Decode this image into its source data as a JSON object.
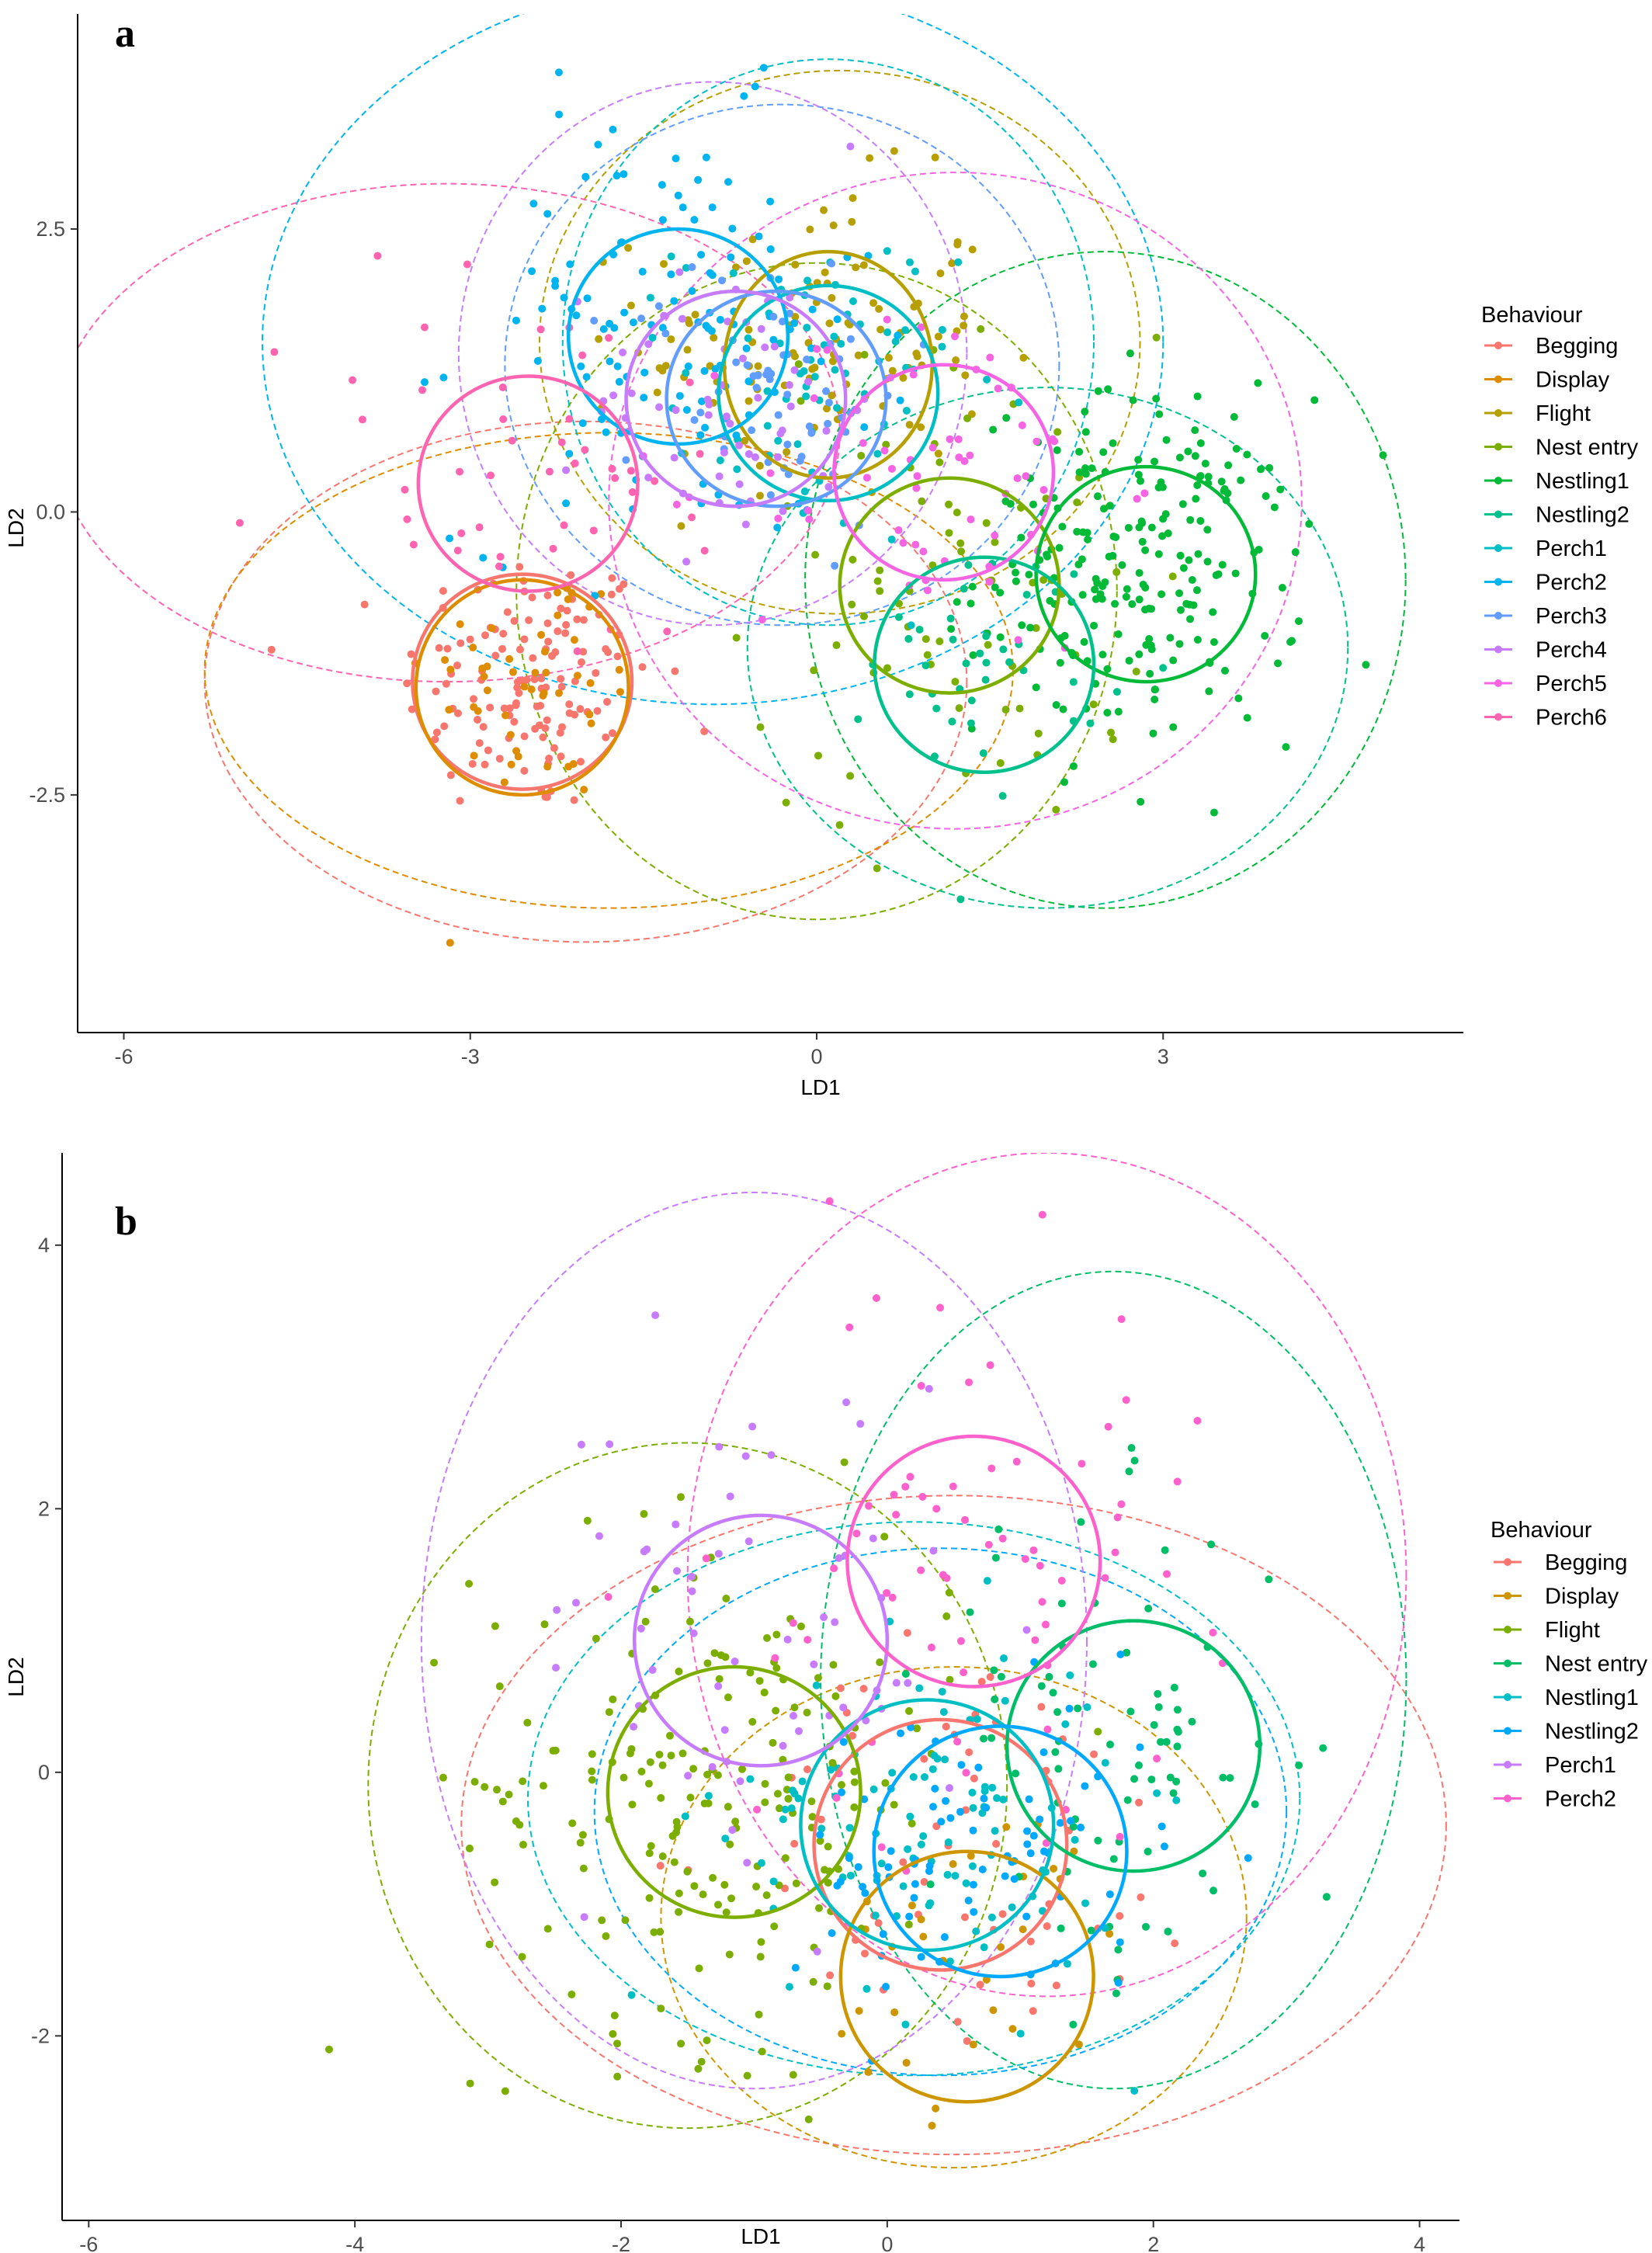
{
  "chart_data": [
    {
      "type": "scatter",
      "panel_label": "a",
      "xlabel": "LD1",
      "ylabel": "LD2",
      "xlim": [
        -6.4,
        5.6
      ],
      "ylim": [
        -4.6,
        4.4
      ],
      "xticks": [
        -6,
        -3,
        0,
        3
      ],
      "xtick_labels": [
        "-6",
        "-3",
        "0",
        "3"
      ],
      "yticks": [
        -2.5,
        0,
        2.5
      ],
      "ytick_labels": [
        "-2.5",
        "0.0",
        "2.5"
      ],
      "grid": false,
      "legend": {
        "title": "Behaviour",
        "placement": "right",
        "entries": [
          "Begging",
          "Display",
          "Flight",
          "Nest entry",
          "Nestling1",
          "Nestling2",
          "Perch1",
          "Perch2",
          "Perch3",
          "Perch4",
          "Perch5",
          "Perch6"
        ]
      },
      "series": [
        {
          "name": "Begging",
          "color": "#F8766D",
          "center": [
            -2.5,
            -1.5
          ],
          "spread": [
            0.55,
            0.6
          ],
          "n": 130,
          "ellipse_solid": [
            -2.55,
            -1.5,
            0.95,
            0.95
          ],
          "ellipse_dashed": [
            -2.0,
            -1.5,
            3.3,
            2.3
          ]
        },
        {
          "name": "Display",
          "color": "#DE8C00",
          "center": [
            -2.4,
            -1.5
          ],
          "spread": [
            0.5,
            0.55
          ],
          "n": 50,
          "ellipse_solid": [
            -2.55,
            -1.55,
            0.92,
            0.95
          ],
          "ellipse_dashed": [
            -1.8,
            -1.4,
            3.5,
            2.1
          ]
        },
        {
          "name": "Flight",
          "color": "#B79F00",
          "center": [
            0.0,
            1.5
          ],
          "spread": [
            0.75,
            0.7
          ],
          "n": 110,
          "ellipse_solid": [
            0.1,
            1.3,
            0.9,
            1.0
          ],
          "ellipse_dashed": [
            0.2,
            1.5,
            2.6,
            2.4
          ]
        },
        {
          "name": "Nest entry",
          "color": "#7CAE00",
          "center": [
            1.2,
            -0.6
          ],
          "spread": [
            0.9,
            1.1
          ],
          "n": 80,
          "ellipse_solid": [
            1.15,
            -0.65,
            0.95,
            0.95
          ],
          "ellipse_dashed": [
            0.0,
            -0.7,
            2.6,
            2.9
          ]
        },
        {
          "name": "Nestling1",
          "color": "#00BA38",
          "center": [
            2.8,
            -0.5
          ],
          "spread": [
            0.7,
            0.75
          ],
          "n": 220,
          "ellipse_solid": [
            2.85,
            -0.55,
            0.95,
            0.95
          ],
          "ellipse_dashed": [
            2.5,
            -0.6,
            2.6,
            2.9
          ]
        },
        {
          "name": "Nestling2",
          "color": "#00C08B",
          "center": [
            1.5,
            -1.3
          ],
          "spread": [
            0.5,
            0.55
          ],
          "n": 40,
          "ellipse_solid": [
            1.45,
            -1.35,
            0.95,
            0.95
          ],
          "ellipse_dashed": [
            2.0,
            -1.2,
            2.6,
            2.3
          ]
        },
        {
          "name": "Perch1",
          "color": "#00BFC4",
          "center": [
            0.0,
            1.1
          ],
          "spread": [
            0.6,
            0.7
          ],
          "n": 70,
          "ellipse_solid": [
            0.1,
            1.05,
            0.95,
            0.95
          ],
          "ellipse_dashed": [
            0.1,
            1.5,
            2.3,
            2.5
          ]
        },
        {
          "name": "Perch2",
          "color": "#00B4F0",
          "center": [
            -1.3,
            1.6
          ],
          "spread": [
            0.9,
            0.95
          ],
          "n": 120,
          "ellipse_solid": [
            -1.2,
            1.55,
            0.95,
            0.95
          ],
          "ellipse_dashed": [
            -0.9,
            1.5,
            3.9,
            3.2
          ]
        },
        {
          "name": "Perch3",
          "color": "#619CFF",
          "center": [
            -0.4,
            1.1
          ],
          "spread": [
            0.6,
            0.6
          ],
          "n": 60,
          "ellipse_solid": [
            -0.35,
            1.0,
            0.95,
            0.95
          ],
          "ellipse_dashed": [
            -0.3,
            1.3,
            2.4,
            2.3
          ]
        },
        {
          "name": "Perch4",
          "color": "#C77CFF",
          "center": [
            -0.7,
            1.0
          ],
          "spread": [
            0.6,
            0.65
          ],
          "n": 60,
          "ellipse_solid": [
            -0.7,
            1.0,
            0.95,
            0.95
          ],
          "ellipse_dashed": [
            -0.9,
            1.4,
            2.2,
            2.4
          ]
        },
        {
          "name": "Perch5",
          "color": "#F564E3",
          "center": [
            1.0,
            0.3
          ],
          "spread": [
            0.8,
            0.8
          ],
          "n": 60,
          "ellipse_solid": [
            1.1,
            0.35,
            0.95,
            0.95
          ],
          "ellipse_dashed": [
            1.2,
            0.1,
            3.0,
            2.9
          ]
        },
        {
          "name": "Perch6",
          "color": "#FF64B0",
          "center": [
            -2.5,
            0.4
          ],
          "spread": [
            1.1,
            0.9
          ],
          "n": 45,
          "ellipse_solid": [
            -2.5,
            0.25,
            0.95,
            0.95
          ],
          "ellipse_dashed": [
            -3.2,
            0.7,
            3.4,
            2.2
          ]
        }
      ]
    },
    {
      "type": "scatter",
      "panel_label": "b",
      "xlabel": "LD1",
      "ylabel": "LD2",
      "xlim": [
        -6.2,
        4.3
      ],
      "ylim": [
        -3.4,
        4.7
      ],
      "xticks": [
        -6,
        -4,
        -2,
        0,
        2,
        4
      ],
      "xtick_labels": [
        "-6",
        "-4",
        "-2",
        "0",
        "2",
        "4"
      ],
      "yticks": [
        -2,
        0,
        2,
        4
      ],
      "ytick_labels": [
        "-2",
        "0",
        "2",
        "4"
      ],
      "grid": false,
      "legend": {
        "title": "Behaviour",
        "placement": "right",
        "entries": [
          "Begging",
          "Display",
          "Flight",
          "Nest entry",
          "Nestling1",
          "Nestling2",
          "Perch1",
          "Perch2"
        ]
      },
      "series": [
        {
          "name": "Begging",
          "color": "#F8766D",
          "center": [
            0.7,
            -0.6
          ],
          "spread": [
            0.9,
            0.8
          ],
          "n": 60,
          "ellipse_solid": [
            0.4,
            -0.55,
            0.95,
            0.95
          ],
          "ellipse_dashed": [
            0.5,
            -0.4,
            3.7,
            2.5
          ]
        },
        {
          "name": "Display",
          "color": "#CD9600",
          "center": [
            0.7,
            -1.4
          ],
          "spread": [
            0.6,
            0.6
          ],
          "n": 30,
          "ellipse_solid": [
            0.6,
            -1.55,
            0.95,
            0.95
          ],
          "ellipse_dashed": [
            0.5,
            -1.1,
            2.2,
            1.9
          ]
        },
        {
          "name": "Flight",
          "color": "#7CAE00",
          "center": [
            -1.3,
            -0.1
          ],
          "spread": [
            0.9,
            0.95
          ],
          "n": 200,
          "ellipse_solid": [
            -1.15,
            -0.15,
            0.95,
            0.95
          ],
          "ellipse_dashed": [
            -1.5,
            -0.1,
            2.4,
            2.6
          ]
        },
        {
          "name": "Nest entry",
          "color": "#00BE67",
          "center": [
            1.7,
            0.2
          ],
          "spread": [
            0.7,
            0.9
          ],
          "n": 80,
          "ellipse_solid": [
            1.85,
            0.2,
            0.95,
            0.95
          ],
          "ellipse_dashed": [
            1.7,
            0.7,
            2.2,
            3.1
          ]
        },
        {
          "name": "Nestling1",
          "color": "#00BFC4",
          "center": [
            0.3,
            -0.4
          ],
          "spread": [
            0.75,
            0.7
          ],
          "n": 100,
          "ellipse_solid": [
            0.3,
            -0.4,
            0.95,
            0.95
          ],
          "ellipse_dashed": [
            0.2,
            -0.2,
            2.9,
            2.1
          ]
        },
        {
          "name": "Nestling2",
          "color": "#00A9FF",
          "center": [
            0.7,
            -0.6
          ],
          "spread": [
            0.7,
            0.6
          ],
          "n": 80,
          "ellipse_solid": [
            0.85,
            -0.6,
            0.95,
            0.95
          ],
          "ellipse_dashed": [
            0.4,
            -0.3,
            2.6,
            2.0
          ]
        },
        {
          "name": "Perch1",
          "color": "#C77CFF",
          "center": [
            -1.0,
            1.1
          ],
          "spread": [
            0.8,
            1.0
          ],
          "n": 60,
          "ellipse_solid": [
            -0.95,
            1.0,
            0.95,
            0.95
          ],
          "ellipse_dashed": [
            -1.0,
            1.0,
            2.5,
            3.4
          ]
        },
        {
          "name": "Perch2",
          "color": "#FF61CC",
          "center": [
            0.6,
            1.6
          ],
          "spread": [
            0.9,
            1.1
          ],
          "n": 70,
          "ellipse_solid": [
            0.65,
            1.6,
            0.95,
            0.95
          ],
          "ellipse_dashed": [
            1.2,
            1.5,
            2.7,
            3.2
          ]
        }
      ]
    }
  ]
}
